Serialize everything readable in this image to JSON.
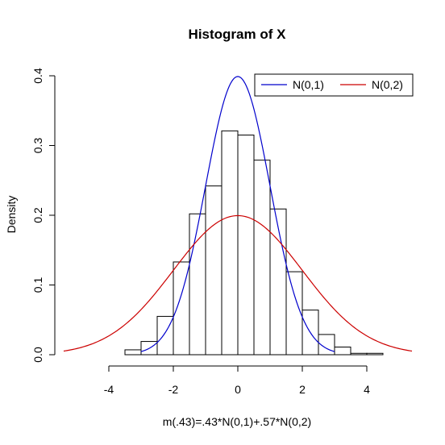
{
  "chart_data": {
    "type": "bar",
    "title": "Histogram of X",
    "xlabel": "m(.43)=.43*N(0,1)+.57*N(0,2)",
    "ylabel": "Density",
    "xlim": [
      -5.4,
      5.4
    ],
    "ylim": [
      0,
      0.4
    ],
    "x_ticks": [
      "-4",
      "-2",
      "0",
      "2",
      "4"
    ],
    "y_ticks": [
      "0.0",
      "0.1",
      "0.2",
      "0.3",
      "0.4"
    ],
    "histogram": {
      "bin_edges": [
        -3.5,
        -3.0,
        -2.5,
        -2.0,
        -1.5,
        -1.0,
        -0.5,
        0.0,
        0.5,
        1.0,
        1.5,
        2.0,
        2.5,
        3.0,
        3.5,
        4.0,
        4.5
      ],
      "density": [
        0.007,
        0.019,
        0.055,
        0.133,
        0.202,
        0.242,
        0.321,
        0.315,
        0.279,
        0.209,
        0.119,
        0.064,
        0.029,
        0.011,
        0.002,
        0.002
      ]
    },
    "series": [
      {
        "name": "N(0,1)",
        "mean": 0,
        "sd": 1,
        "color": "#0000cc",
        "x_range": [
          -3,
          3
        ]
      },
      {
        "name": "N(0,2)",
        "mean": 0,
        "sd": 2,
        "color": "#cc0000",
        "x_range": [
          -5.4,
          5.4
        ]
      }
    ],
    "legend": {
      "position": "top-right"
    },
    "grid": false
  }
}
